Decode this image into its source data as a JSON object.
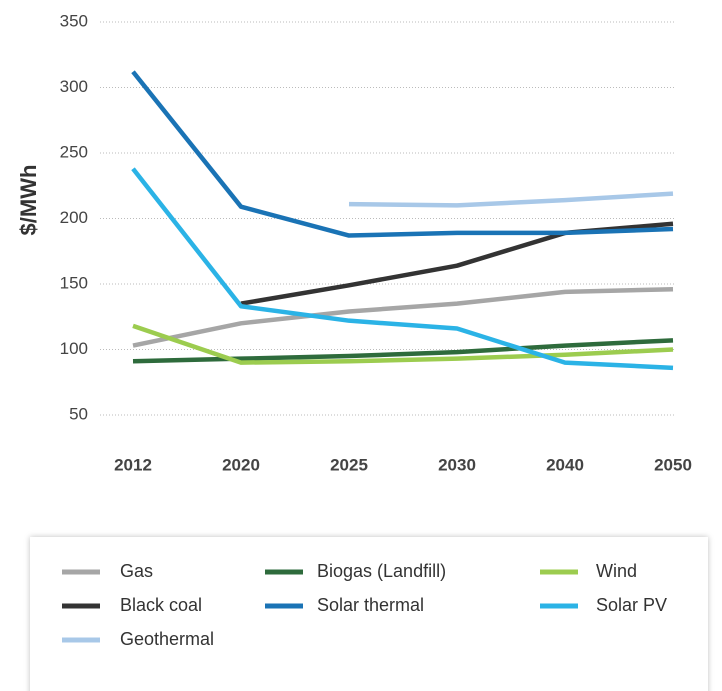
{
  "chart_data": {
    "type": "line",
    "y_label": "$/MWh",
    "categories": [
      "2012",
      "2020",
      "2025",
      "2030",
      "2040",
      "2050"
    ],
    "ylim": [
      50,
      350
    ],
    "yticks": [
      50,
      100,
      150,
      200,
      250,
      300,
      350
    ],
    "grid": true,
    "series": [
      {
        "name": "Gas",
        "color": "#a6a6a6",
        "values": [
          103,
          120,
          129,
          135,
          144,
          146
        ]
      },
      {
        "name": "Biogas (Landfill)",
        "color": "#2e6b3c",
        "values": [
          91,
          93,
          95,
          98,
          103,
          107
        ]
      },
      {
        "name": "Wind",
        "color": "#9ccc4f",
        "values": [
          118,
          90,
          91,
          93,
          96,
          100
        ]
      },
      {
        "name": "Black coal",
        "color": "#333333",
        "values": [
          null,
          135,
          149,
          164,
          189,
          196
        ]
      },
      {
        "name": "Solar thermal",
        "color": "#1a73b5",
        "values": [
          312,
          209,
          187,
          189,
          189,
          192
        ]
      },
      {
        "name": "Solar PV",
        "color": "#2bb3e6",
        "values": [
          238,
          133,
          122,
          116,
          90,
          86
        ]
      },
      {
        "name": "Geothermal",
        "color": "#a8c8e8",
        "values": [
          null,
          null,
          211,
          210,
          214,
          219
        ]
      }
    ]
  }
}
